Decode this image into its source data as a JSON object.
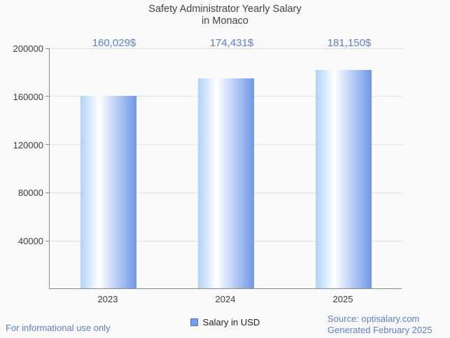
{
  "title": {
    "line1": "Safety Administrator Yearly Salary",
    "line2": "in Monaco"
  },
  "chart_data": {
    "type": "bar",
    "title": "Safety Administrator Yearly Salary in Monaco",
    "categories": [
      "2023",
      "2024",
      "2025"
    ],
    "values": [
      160029,
      174431,
      181150
    ],
    "value_labels": [
      "160,029$",
      "174,431$",
      "181,150$"
    ],
    "series_name": "Salary in USD",
    "ylim": [
      0,
      200000
    ],
    "yticks": [
      40000,
      80000,
      120000,
      160000,
      200000
    ],
    "ytick_labels": [
      "40000",
      "80000",
      "120000",
      "160000",
      "200000"
    ],
    "grid": true,
    "legend_position": "bottom"
  },
  "legend": {
    "label": "Salary in USD"
  },
  "footer": {
    "left": "For informational use only",
    "source": "Source: optisalary.com",
    "generated": "Generated February 2025"
  },
  "colors": {
    "background": "#fafafa",
    "title_text": "#424242",
    "tick_text": "#3c3c3c",
    "axis_line": "#8a8a8a",
    "gridline": "#e0e0e0",
    "value_label": "#5b7ed7",
    "footer_text": "#5b7ed7",
    "bar_gradient_left": "#aed3fa",
    "bar_gradient_mid": "#ffffff",
    "bar_gradient_right": "#6d97e8",
    "legend_swatch_fill": "#6d9eeb",
    "legend_swatch_border": "#4a79cc"
  }
}
